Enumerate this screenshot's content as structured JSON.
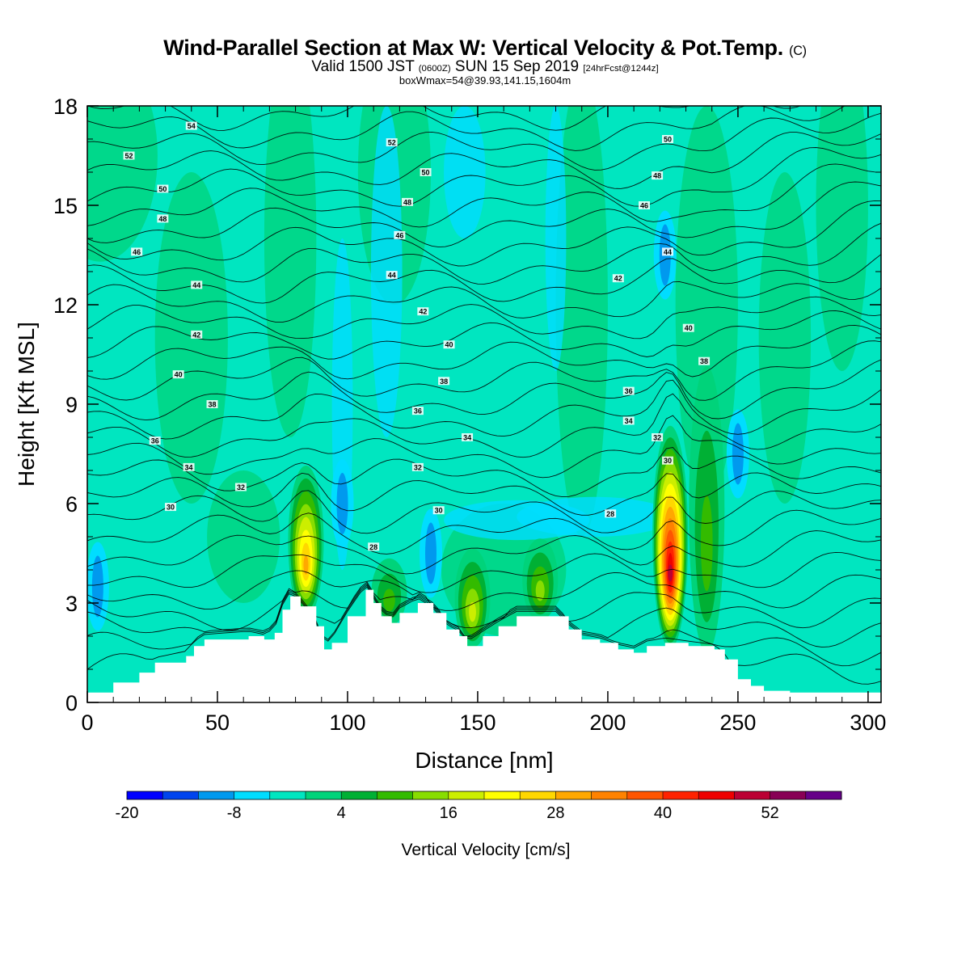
{
  "title": "Wind-Parallel Section at Max W: Vertical Velocity & Pot.Temp.",
  "title_mark": "(C)",
  "valid": {
    "prefix": "Valid 1500 JST",
    "utc": "(0600Z)",
    "date": "SUN 15 Sep 2019",
    "forecast": "[24hrFcst@1244z]"
  },
  "box_info": "boxWmax=54@39.93,141.15,1604m",
  "chart_data": {
    "type": "heatmap",
    "xlabel": "Distance [nm]",
    "ylabel": "Height [Kft MSL]",
    "xlim": [
      0,
      305
    ],
    "ylim": [
      0,
      18
    ],
    "xticks": [
      0,
      50,
      100,
      150,
      200,
      250,
      300
    ],
    "yticks": [
      0,
      3,
      6,
      9,
      12,
      15,
      18
    ],
    "colorbar": {
      "label": "Vertical Velocity [cm/s]",
      "tick_labels": [
        -20,
        -8,
        4,
        16,
        28,
        40,
        52
      ],
      "colors": [
        "#0000ff",
        "#0044ee",
        "#0099ee",
        "#00ddff",
        "#00e6c0",
        "#00d37a",
        "#00b034",
        "#33bb00",
        "#88dd00",
        "#ccee00",
        "#ffff00",
        "#ffd700",
        "#ffa800",
        "#ff8200",
        "#ff5500",
        "#ff2200",
        "#ee0000",
        "#bb0033",
        "#880055",
        "#660088"
      ]
    },
    "background_level": "0 to 4 cm/s",
    "terrain_profile": {
      "x": [
        0,
        10,
        20,
        26,
        38,
        41,
        45,
        62,
        68,
        72,
        75,
        78,
        82,
        88,
        91,
        94,
        100,
        107,
        110,
        113,
        117,
        120,
        127,
        133,
        138,
        143,
        146,
        152,
        158,
        165,
        180,
        185,
        190,
        197,
        204,
        210,
        215,
        222,
        231,
        241,
        245,
        250,
        255,
        260,
        270,
        305
      ],
      "height_kft": [
        0.3,
        0.6,
        0.9,
        1.2,
        1.4,
        1.7,
        1.9,
        2.0,
        1.9,
        2.1,
        2.8,
        3.2,
        2.9,
        2.3,
        1.6,
        1.8,
        2.6,
        3.4,
        3.0,
        2.6,
        2.4,
        2.7,
        3.0,
        2.7,
        2.2,
        2.0,
        1.7,
        2.0,
        2.3,
        2.6,
        2.6,
        2.2,
        1.9,
        1.8,
        1.6,
        1.5,
        1.7,
        1.8,
        1.7,
        1.6,
        1.3,
        0.7,
        0.5,
        0.35,
        0.3,
        0.3
      ]
    },
    "updraft_features": [
      {
        "x": 84,
        "top_kft": 7.0,
        "peak_range": "16-28"
      },
      {
        "x": 116,
        "top_kft": 4.2,
        "peak_range": "4-8"
      },
      {
        "x": 148,
        "top_kft": 4.5,
        "peak_range": "8-16"
      },
      {
        "x": 174,
        "top_kft": 4.8,
        "peak_range": "4-12"
      },
      {
        "x": 224,
        "top_kft": 8.2,
        "peak_range": "40-54"
      },
      {
        "x": 238,
        "top_kft": 10.0,
        "peak_range": "4-8"
      }
    ],
    "downdraft_features": [
      {
        "x": 4,
        "height_kft": 3.5,
        "min_value": -12
      },
      {
        "x": 98,
        "height_kft": 6.0,
        "min_value": -12
      },
      {
        "x": 132,
        "height_kft": 4.5,
        "min_value": -12
      },
      {
        "x": 222,
        "height_kft": 13.5,
        "min_value": -16
      },
      {
        "x": 250,
        "height_kft": 7.5,
        "min_value": -12
      }
    ],
    "theta_contours": {
      "variable": "Potential Temperature",
      "interval": 2,
      "labels": [
        {
          "text": "54",
          "x": 40,
          "y": 17.4
        },
        {
          "text": "52",
          "x": 16,
          "y": 16.5
        },
        {
          "text": "50",
          "x": 29,
          "y": 15.5
        },
        {
          "text": "48",
          "x": 29,
          "y": 14.6
        },
        {
          "text": "46",
          "x": 19,
          "y": 13.6
        },
        {
          "text": "44",
          "x": 42,
          "y": 12.6
        },
        {
          "text": "42",
          "x": 42,
          "y": 11.1
        },
        {
          "text": "40",
          "x": 35,
          "y": 9.9
        },
        {
          "text": "38",
          "x": 48,
          "y": 9.0
        },
        {
          "text": "36",
          "x": 26,
          "y": 7.9
        },
        {
          "text": "34",
          "x": 39,
          "y": 7.1
        },
        {
          "text": "32",
          "x": 59,
          "y": 6.5
        },
        {
          "text": "30",
          "x": 32,
          "y": 5.9
        },
        {
          "text": "52",
          "x": 117,
          "y": 16.9
        },
        {
          "text": "50",
          "x": 130,
          "y": 16.0
        },
        {
          "text": "48",
          "x": 123,
          "y": 15.1
        },
        {
          "text": "46",
          "x": 120,
          "y": 14.1
        },
        {
          "text": "44",
          "x": 117,
          "y": 12.9
        },
        {
          "text": "42",
          "x": 129,
          "y": 11.8
        },
        {
          "text": "40",
          "x": 139,
          "y": 10.8
        },
        {
          "text": "38",
          "x": 137,
          "y": 9.7
        },
        {
          "text": "36",
          "x": 127,
          "y": 8.8
        },
        {
          "text": "34",
          "x": 146,
          "y": 8.0
        },
        {
          "text": "32",
          "x": 127,
          "y": 7.1
        },
        {
          "text": "30",
          "x": 135,
          "y": 5.8
        },
        {
          "text": "28",
          "x": 110,
          "y": 4.7
        },
        {
          "text": "50",
          "x": 223,
          "y": 17.0
        },
        {
          "text": "48",
          "x": 219,
          "y": 15.9
        },
        {
          "text": "46",
          "x": 214,
          "y": 15.0
        },
        {
          "text": "44",
          "x": 223,
          "y": 13.6
        },
        {
          "text": "42",
          "x": 204,
          "y": 12.8
        },
        {
          "text": "40",
          "x": 231,
          "y": 11.3
        },
        {
          "text": "38",
          "x": 237,
          "y": 10.3
        },
        {
          "text": "36",
          "x": 208,
          "y": 9.4
        },
        {
          "text": "34",
          "x": 208,
          "y": 8.5
        },
        {
          "text": "32",
          "x": 219,
          "y": 8.0
        },
        {
          "text": "30",
          "x": 223,
          "y": 7.3
        },
        {
          "text": "28",
          "x": 201,
          "y": 5.7
        }
      ]
    }
  }
}
